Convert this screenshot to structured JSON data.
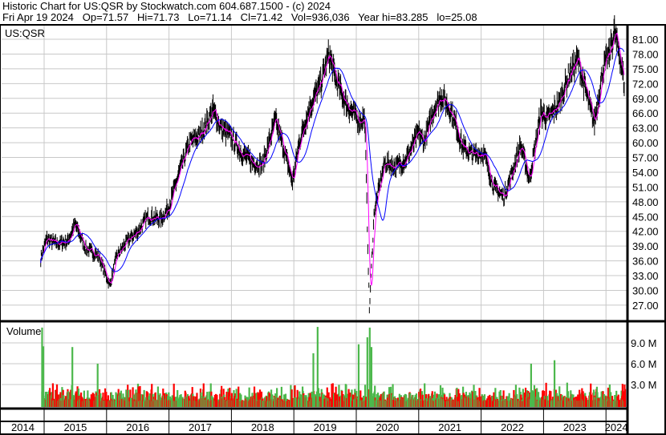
{
  "header": {
    "title": "Historic Chart for US:QSR by Stockwatch.com 604.687.1500 - (c) 2024",
    "summary": "Fri Apr 19 2024   Op=71.57   Hi=71.73   Lo=71.14   Cl=71.42   Vol=936,036   Year hi=83.285   lo=25.08"
  },
  "chart_data": {
    "type": "ohlc",
    "symbol_label": "US:QSR",
    "volume_label": "Volume",
    "price_ylim": [
      25.08,
      83.3
    ],
    "price_ticks": [
      "81.00",
      "78.00",
      "75.00",
      "72.00",
      "69.00",
      "66.00",
      "63.00",
      "60.00",
      "57.00",
      "54.00",
      "51.00",
      "48.00",
      "45.00",
      "42.00",
      "39.00",
      "36.00",
      "33.00",
      "30.00",
      "27.00"
    ],
    "volume_ticks": [
      "9.0 M",
      "6.0 M",
      "3.0 M"
    ],
    "volume_tick_values": [
      9000000,
      6000000,
      3000000
    ],
    "x_labels": [
      "2014",
      "2015",
      "2016",
      "2017",
      "2018",
      "2019",
      "2020",
      "2021",
      "2022",
      "2023",
      "2024"
    ],
    "grid": true,
    "colors": {
      "price": "#000000",
      "ma_short": "#ff00ff",
      "ma_long": "#0000ff",
      "vol_up": "#4cb84c",
      "vol_down": "#ff0000",
      "grid": "#c8c8c8"
    },
    "price_path": [
      [
        "2014-12-12",
        36.5
      ],
      [
        "2015-01-15",
        40.5
      ],
      [
        "2015-03-15",
        39.5
      ],
      [
        "2015-05-20",
        40
      ],
      [
        "2015-07-01",
        43.5
      ],
      [
        "2015-09-01",
        38.5
      ],
      [
        "2015-11-15",
        37
      ],
      [
        "2016-01-20",
        31
      ],
      [
        "2016-03-01",
        37
      ],
      [
        "2016-05-01",
        40
      ],
      [
        "2016-07-01",
        42
      ],
      [
        "2016-09-01",
        45
      ],
      [
        "2016-11-15",
        44.5
      ],
      [
        "2017-01-01",
        47
      ],
      [
        "2017-03-01",
        54
      ],
      [
        "2017-05-01",
        60
      ],
      [
        "2017-07-01",
        61.5
      ],
      [
        "2017-09-15",
        66.5
      ],
      [
        "2017-11-01",
        63
      ],
      [
        "2018-01-01",
        61
      ],
      [
        "2018-03-01",
        58
      ],
      [
        "2018-05-01",
        56
      ],
      [
        "2018-07-01",
        55.5
      ],
      [
        "2018-09-15",
        64.5
      ],
      [
        "2018-11-01",
        59
      ],
      [
        "2018-12-24",
        52
      ],
      [
        "2019-02-01",
        60
      ],
      [
        "2019-04-01",
        67
      ],
      [
        "2019-06-01",
        71.5
      ],
      [
        "2019-07-25",
        78
      ],
      [
        "2019-09-01",
        73
      ],
      [
        "2019-11-01",
        68
      ],
      [
        "2020-01-15",
        64.5
      ],
      [
        "2020-02-20",
        65
      ],
      [
        "2020-03-18",
        26
      ],
      [
        "2020-04-15",
        46
      ],
      [
        "2020-06-15",
        56
      ],
      [
        "2020-08-15",
        55
      ],
      [
        "2020-10-15",
        56.5
      ],
      [
        "2020-12-31",
        62
      ],
      [
        "2021-02-01",
        60
      ],
      [
        "2021-04-01",
        67
      ],
      [
        "2021-05-15",
        69.5
      ],
      [
        "2021-07-15",
        66
      ],
      [
        "2021-09-15",
        59
      ],
      [
        "2021-11-15",
        57.5
      ],
      [
        "2022-01-15",
        58
      ],
      [
        "2022-03-15",
        51
      ],
      [
        "2022-05-15",
        49
      ],
      [
        "2022-07-01",
        54
      ],
      [
        "2022-08-20",
        59.5
      ],
      [
        "2022-10-10",
        52.5
      ],
      [
        "2022-12-15",
        66
      ],
      [
        "2023-02-01",
        65
      ],
      [
        "2023-04-01",
        68
      ],
      [
        "2023-06-01",
        74
      ],
      [
        "2023-07-20",
        77
      ],
      [
        "2023-09-15",
        69
      ],
      [
        "2023-10-25",
        64
      ],
      [
        "2023-12-15",
        75
      ],
      [
        "2024-01-20",
        78
      ],
      [
        "2024-02-20",
        82.5
      ],
      [
        "2024-03-20",
        78
      ],
      [
        "2024-04-19",
        71.42
      ]
    ],
    "volume_spikes": [
      [
        "2014-12-15",
        11200000
      ],
      [
        "2014-12-22",
        8500000
      ],
      [
        "2015-06-10",
        8400000
      ],
      [
        "2015-11-05",
        6000000
      ],
      [
        "2019-05-15",
        11300000
      ],
      [
        "2019-04-20",
        7500000
      ],
      [
        "2020-03-15",
        11200000
      ],
      [
        "2020-03-01",
        9800000
      ],
      [
        "2020-03-25",
        8400000
      ],
      [
        "2020-01-10",
        8800000
      ],
      [
        "2022-10-15",
        6000000
      ],
      [
        "2023-03-01",
        6500000
      ]
    ]
  }
}
